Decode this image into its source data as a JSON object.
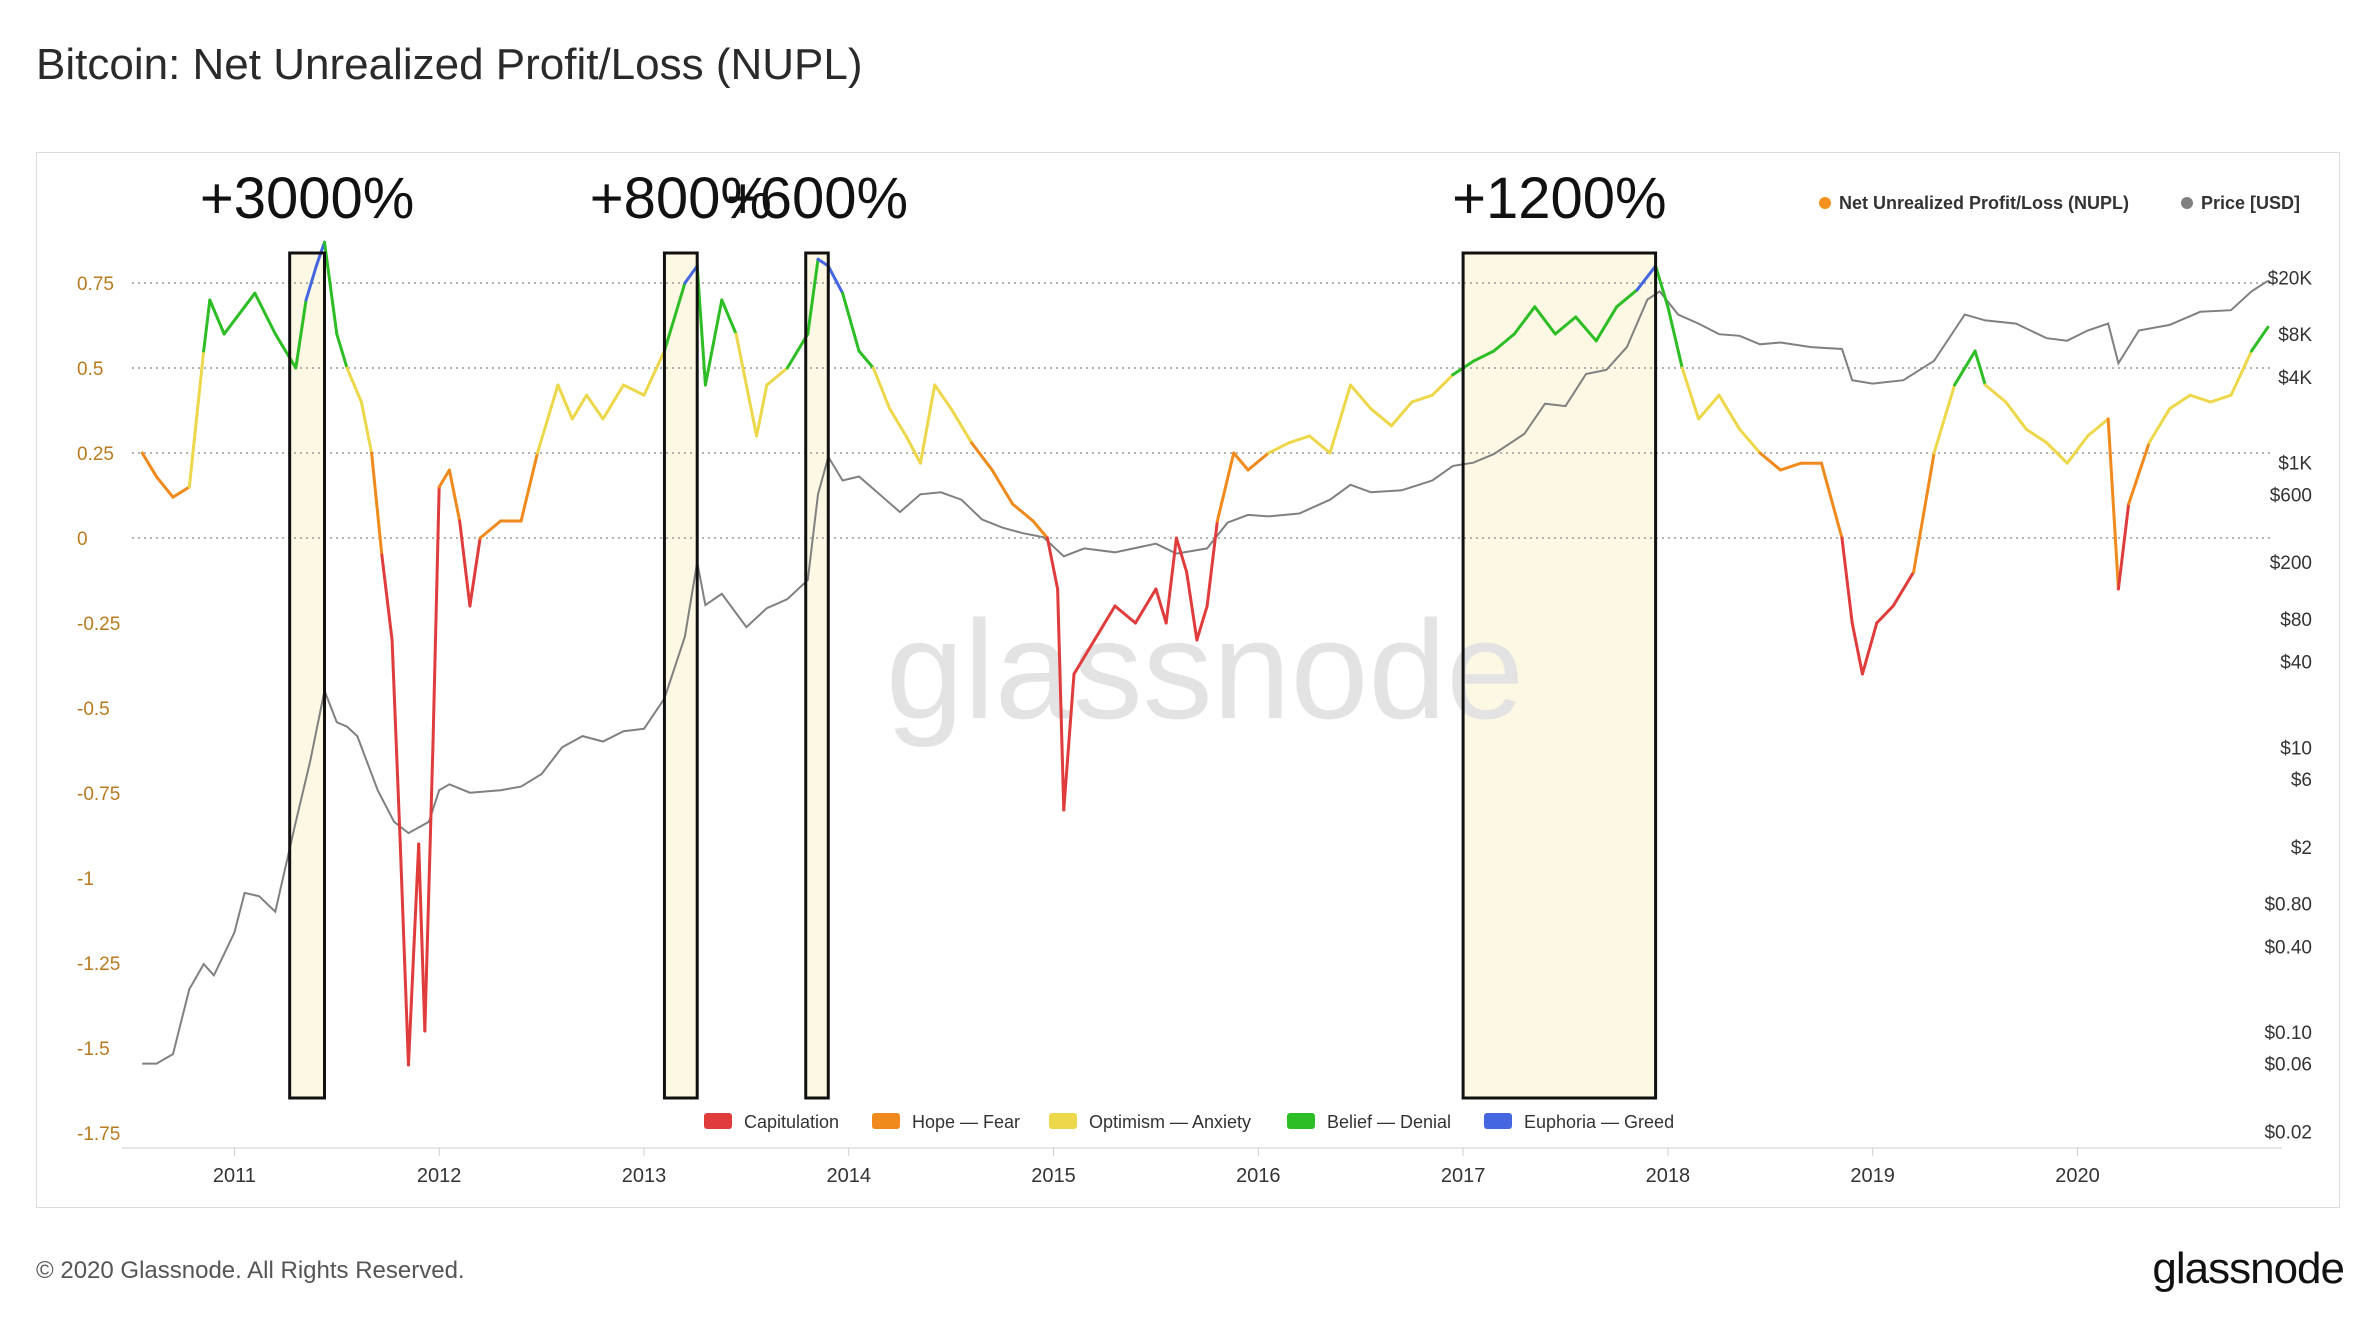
{
  "title": "Bitcoin: Net Unrealized Profit/Loss (NUPL)",
  "footer": {
    "copyright": "© 2020 Glassnode. All Rights Reserved.",
    "logo": "glassnode"
  },
  "watermark": "glassnode",
  "colors": {
    "capitulation": "#e03c3c",
    "hope_fear": "#f08a1c",
    "optimism_anxiety": "#ecd84a",
    "belief_denial": "#2dbd24",
    "euphoria_greed": "#4466e0",
    "price": "#808080",
    "nupl_legend": "#f5921e",
    "left_axis_text": "#b87a1e",
    "highlight_fill": "#fdf8e3"
  },
  "chart_data": {
    "type": "line",
    "x_ticks": [
      "2011",
      "2012",
      "2013",
      "2014",
      "2015",
      "2016",
      "2017",
      "2018",
      "2019",
      "2020"
    ],
    "x_range": [
      2010.5,
      2020.95
    ],
    "left_axis": {
      "ticks": [
        "0.75",
        "0.5",
        "0.25",
        "0",
        "-0.25",
        "-0.5",
        "-0.75",
        "-1",
        "-1.25",
        "-1.5",
        "-1.75"
      ],
      "range": [
        -1.75,
        0.75
      ],
      "gridlines_at": [
        0.75,
        0.5,
        0.25,
        0
      ]
    },
    "right_axis": {
      "scale": "log",
      "ticks": [
        {
          "label": "$20K",
          "value": 20000
        },
        {
          "label": "$8K",
          "value": 8000
        },
        {
          "label": "$4K",
          "value": 4000
        },
        {
          "label": "$1K",
          "value": 1000
        },
        {
          "label": "$600",
          "value": 600
        },
        {
          "label": "$200",
          "value": 200
        },
        {
          "label": "$80",
          "value": 80
        },
        {
          "label": "$40",
          "value": 40
        },
        {
          "label": "$10",
          "value": 10
        },
        {
          "label": "$6",
          "value": 6
        },
        {
          "label": "$2",
          "value": 2
        },
        {
          "label": "$0.80",
          "value": 0.8
        },
        {
          "label": "$0.40",
          "value": 0.4
        },
        {
          "label": "$0.10",
          "value": 0.1
        },
        {
          "label": "$0.06",
          "value": 0.06
        },
        {
          "label": "$0.02",
          "value": 0.02
        }
      ]
    },
    "legend_top": [
      {
        "label": "Net Unrealized Profit/Loss (NUPL)",
        "color": "#f5921e"
      },
      {
        "label": "Price [USD]",
        "color": "#808080"
      }
    ],
    "legend_bottom": [
      {
        "label": "Capitulation",
        "color": "#e03c3c"
      },
      {
        "label": "Hope — Fear",
        "color": "#f08a1c"
      },
      {
        "label": "Optimism — Anxiety",
        "color": "#ecd84a"
      },
      {
        "label": "Belief — Denial",
        "color": "#2dbd24"
      },
      {
        "label": "Euphoria — Greed",
        "color": "#4466e0"
      }
    ],
    "highlights": [
      {
        "label": "+3000%",
        "x_start": 2011.27,
        "x_end": 2011.44
      },
      {
        "label": "+800%",
        "x_start": 2013.1,
        "x_end": 2013.26
      },
      {
        "label": "+600%",
        "x_start": 2013.79,
        "x_end": 2013.9
      },
      {
        "label": "+1200%",
        "x_start": 2017.0,
        "x_end": 2017.94
      }
    ],
    "series": [
      {
        "name": "Net Unrealized Profit/Loss (NUPL)",
        "points": [
          [
            2010.55,
            0.25
          ],
          [
            2010.62,
            0.18
          ],
          [
            2010.7,
            0.12
          ],
          [
            2010.78,
            0.15
          ],
          [
            2010.85,
            0.55
          ],
          [
            2010.88,
            0.7
          ],
          [
            2010.95,
            0.6
          ],
          [
            2011.05,
            0.68
          ],
          [
            2011.1,
            0.72
          ],
          [
            2011.2,
            0.6
          ],
          [
            2011.3,
            0.5
          ],
          [
            2011.35,
            0.7
          ],
          [
            2011.4,
            0.8
          ],
          [
            2011.44,
            0.87
          ],
          [
            2011.5,
            0.6
          ],
          [
            2011.55,
            0.5
          ],
          [
            2011.62,
            0.4
          ],
          [
            2011.67,
            0.25
          ],
          [
            2011.72,
            -0.05
          ],
          [
            2011.77,
            -0.3
          ],
          [
            2011.81,
            -0.9
          ],
          [
            2011.85,
            -1.55
          ],
          [
            2011.9,
            -0.9
          ],
          [
            2011.93,
            -1.45
          ],
          [
            2011.97,
            -0.6
          ],
          [
            2012.0,
            0.15
          ],
          [
            2012.05,
            0.2
          ],
          [
            2012.1,
            0.05
          ],
          [
            2012.15,
            -0.2
          ],
          [
            2012.2,
            0.0
          ],
          [
            2012.3,
            0.05
          ],
          [
            2012.4,
            0.05
          ],
          [
            2012.48,
            0.25
          ],
          [
            2012.58,
            0.45
          ],
          [
            2012.65,
            0.35
          ],
          [
            2012.72,
            0.42
          ],
          [
            2012.8,
            0.35
          ],
          [
            2012.9,
            0.45
          ],
          [
            2013.0,
            0.42
          ],
          [
            2013.1,
            0.55
          ],
          [
            2013.2,
            0.75
          ],
          [
            2013.26,
            0.8
          ],
          [
            2013.3,
            0.45
          ],
          [
            2013.38,
            0.7
          ],
          [
            2013.45,
            0.6
          ],
          [
            2013.55,
            0.3
          ],
          [
            2013.6,
            0.45
          ],
          [
            2013.7,
            0.5
          ],
          [
            2013.75,
            0.55
          ],
          [
            2013.8,
            0.6
          ],
          [
            2013.85,
            0.82
          ],
          [
            2013.9,
            0.8
          ],
          [
            2013.97,
            0.72
          ],
          [
            2014.05,
            0.55
          ],
          [
            2014.12,
            0.5
          ],
          [
            2014.2,
            0.38
          ],
          [
            2014.28,
            0.3
          ],
          [
            2014.35,
            0.22
          ],
          [
            2014.42,
            0.45
          ],
          [
            2014.5,
            0.38
          ],
          [
            2014.6,
            0.28
          ],
          [
            2014.7,
            0.2
          ],
          [
            2014.8,
            0.1
          ],
          [
            2014.9,
            0.05
          ],
          [
            2014.97,
            0.0
          ],
          [
            2015.02,
            -0.15
          ],
          [
            2015.05,
            -0.8
          ],
          [
            2015.1,
            -0.4
          ],
          [
            2015.2,
            -0.3
          ],
          [
            2015.3,
            -0.2
          ],
          [
            2015.4,
            -0.25
          ],
          [
            2015.5,
            -0.15
          ],
          [
            2015.55,
            -0.25
          ],
          [
            2015.6,
            0.0
          ],
          [
            2015.65,
            -0.1
          ],
          [
            2015.7,
            -0.3
          ],
          [
            2015.75,
            -0.2
          ],
          [
            2015.8,
            0.05
          ],
          [
            2015.88,
            0.25
          ],
          [
            2015.95,
            0.2
          ],
          [
            2016.05,
            0.25
          ],
          [
            2016.15,
            0.28
          ],
          [
            2016.25,
            0.3
          ],
          [
            2016.35,
            0.25
          ],
          [
            2016.45,
            0.45
          ],
          [
            2016.55,
            0.38
          ],
          [
            2016.65,
            0.33
          ],
          [
            2016.75,
            0.4
          ],
          [
            2016.85,
            0.42
          ],
          [
            2016.95,
            0.48
          ],
          [
            2017.05,
            0.52
          ],
          [
            2017.15,
            0.55
          ],
          [
            2017.25,
            0.6
          ],
          [
            2017.35,
            0.68
          ],
          [
            2017.45,
            0.6
          ],
          [
            2017.55,
            0.65
          ],
          [
            2017.65,
            0.58
          ],
          [
            2017.75,
            0.68
          ],
          [
            2017.85,
            0.73
          ],
          [
            2017.94,
            0.8
          ],
          [
            2018.0,
            0.68
          ],
          [
            2018.07,
            0.5
          ],
          [
            2018.15,
            0.35
          ],
          [
            2018.25,
            0.42
          ],
          [
            2018.35,
            0.32
          ],
          [
            2018.45,
            0.25
          ],
          [
            2018.55,
            0.2
          ],
          [
            2018.65,
            0.22
          ],
          [
            2018.75,
            0.22
          ],
          [
            2018.85,
            0.0
          ],
          [
            2018.9,
            -0.25
          ],
          [
            2018.95,
            -0.4
          ],
          [
            2019.02,
            -0.25
          ],
          [
            2019.1,
            -0.2
          ],
          [
            2019.2,
            -0.1
          ],
          [
            2019.3,
            0.25
          ],
          [
            2019.4,
            0.45
          ],
          [
            2019.5,
            0.55
          ],
          [
            2019.55,
            0.45
          ],
          [
            2019.65,
            0.4
          ],
          [
            2019.75,
            0.32
          ],
          [
            2019.85,
            0.28
          ],
          [
            2019.95,
            0.22
          ],
          [
            2020.05,
            0.3
          ],
          [
            2020.15,
            0.35
          ],
          [
            2020.2,
            -0.15
          ],
          [
            2020.25,
            0.1
          ],
          [
            2020.35,
            0.28
          ],
          [
            2020.45,
            0.38
          ],
          [
            2020.55,
            0.42
          ],
          [
            2020.65,
            0.4
          ],
          [
            2020.75,
            0.42
          ],
          [
            2020.85,
            0.55
          ],
          [
            2020.93,
            0.62
          ]
        ]
      },
      {
        "name": "Price [USD]",
        "points": [
          [
            2010.55,
            0.06
          ],
          [
            2010.62,
            0.06
          ],
          [
            2010.7,
            0.07
          ],
          [
            2010.78,
            0.2
          ],
          [
            2010.85,
            0.3
          ],
          [
            2010.9,
            0.25
          ],
          [
            2011.0,
            0.5
          ],
          [
            2011.05,
            0.95
          ],
          [
            2011.12,
            0.9
          ],
          [
            2011.2,
            0.7
          ],
          [
            2011.3,
            3
          ],
          [
            2011.37,
            8
          ],
          [
            2011.44,
            25
          ],
          [
            2011.5,
            15
          ],
          [
            2011.55,
            14
          ],
          [
            2011.6,
            12
          ],
          [
            2011.7,
            5
          ],
          [
            2011.78,
            3
          ],
          [
            2011.85,
            2.5
          ],
          [
            2011.95,
            3
          ],
          [
            2012.0,
            5
          ],
          [
            2012.05,
            5.5
          ],
          [
            2012.15,
            4.8
          ],
          [
            2012.3,
            5
          ],
          [
            2012.4,
            5.3
          ],
          [
            2012.5,
            6.5
          ],
          [
            2012.6,
            10
          ],
          [
            2012.7,
            12
          ],
          [
            2012.8,
            11
          ],
          [
            2012.9,
            13
          ],
          [
            2013.0,
            13.5
          ],
          [
            2013.1,
            22
          ],
          [
            2013.2,
            60
          ],
          [
            2013.26,
            200
          ],
          [
            2013.3,
            100
          ],
          [
            2013.38,
            120
          ],
          [
            2013.5,
            70
          ],
          [
            2013.6,
            95
          ],
          [
            2013.7,
            110
          ],
          [
            2013.8,
            150
          ],
          [
            2013.85,
            600
          ],
          [
            2013.9,
            1100
          ],
          [
            2013.97,
            750
          ],
          [
            2014.05,
            800
          ],
          [
            2014.15,
            600
          ],
          [
            2014.25,
            450
          ],
          [
            2014.35,
            600
          ],
          [
            2014.45,
            620
          ],
          [
            2014.55,
            550
          ],
          [
            2014.65,
            400
          ],
          [
            2014.75,
            350
          ],
          [
            2014.85,
            320
          ],
          [
            2014.95,
            300
          ],
          [
            2015.05,
            220
          ],
          [
            2015.15,
            250
          ],
          [
            2015.3,
            235
          ],
          [
            2015.5,
            270
          ],
          [
            2015.6,
            230
          ],
          [
            2015.75,
            250
          ],
          [
            2015.85,
            380
          ],
          [
            2015.95,
            430
          ],
          [
            2016.05,
            420
          ],
          [
            2016.2,
            440
          ],
          [
            2016.35,
            550
          ],
          [
            2016.45,
            700
          ],
          [
            2016.55,
            620
          ],
          [
            2016.7,
            640
          ],
          [
            2016.85,
            750
          ],
          [
            2016.95,
            950
          ],
          [
            2017.05,
            1000
          ],
          [
            2017.15,
            1150
          ],
          [
            2017.3,
            1600
          ],
          [
            2017.4,
            2600
          ],
          [
            2017.5,
            2500
          ],
          [
            2017.6,
            4200
          ],
          [
            2017.7,
            4500
          ],
          [
            2017.8,
            6500
          ],
          [
            2017.9,
            14000
          ],
          [
            2017.96,
            16000
          ],
          [
            2018.05,
            11000
          ],
          [
            2018.15,
            9500
          ],
          [
            2018.25,
            8000
          ],
          [
            2018.35,
            7800
          ],
          [
            2018.45,
            6800
          ],
          [
            2018.55,
            7000
          ],
          [
            2018.7,
            6500
          ],
          [
            2018.85,
            6300
          ],
          [
            2018.9,
            3800
          ],
          [
            2019.0,
            3600
          ],
          [
            2019.15,
            3800
          ],
          [
            2019.3,
            5200
          ],
          [
            2019.45,
            11000
          ],
          [
            2019.55,
            10000
          ],
          [
            2019.7,
            9500
          ],
          [
            2019.85,
            7500
          ],
          [
            2019.95,
            7200
          ],
          [
            2020.05,
            8500
          ],
          [
            2020.15,
            9500
          ],
          [
            2020.2,
            5000
          ],
          [
            2020.3,
            8500
          ],
          [
            2020.45,
            9300
          ],
          [
            2020.6,
            11500
          ],
          [
            2020.75,
            11800
          ],
          [
            2020.85,
            16000
          ],
          [
            2020.93,
            19000
          ]
        ]
      }
    ]
  }
}
